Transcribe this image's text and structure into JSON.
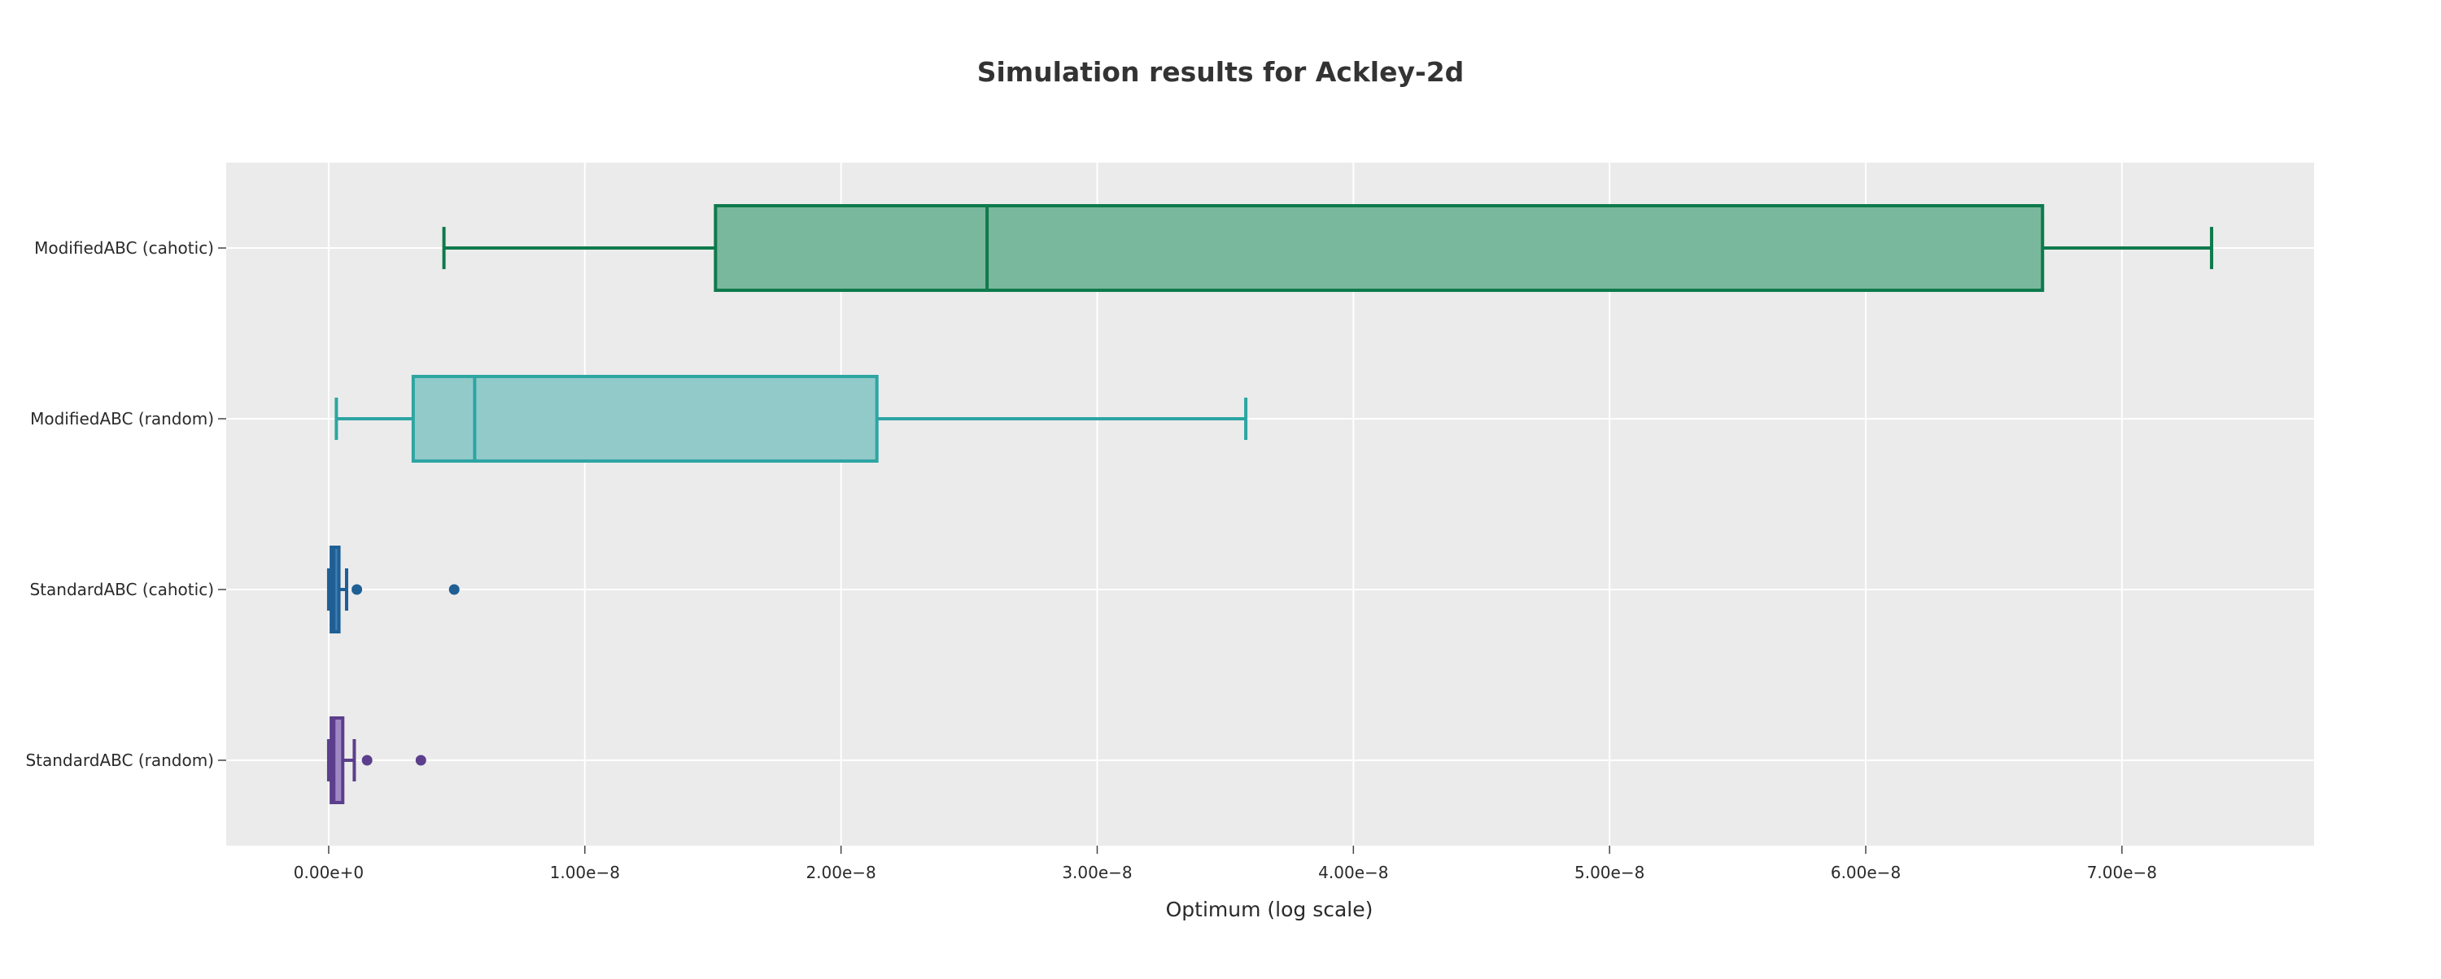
{
  "chart_data": {
    "type": "box",
    "orientation": "horizontal",
    "title": "Simulation results for Ackley-2d",
    "xlabel": "Optimum (log scale)",
    "ylabel": "",
    "xlim": [
      -4e-09,
      7.75e-08
    ],
    "xticks": [
      0,
      1e-08,
      2e-08,
      3e-08,
      4e-08,
      5e-08,
      6e-08,
      7e-08
    ],
    "xtick_labels": [
      "0.00e+0",
      "1.00e−8",
      "2.00e−8",
      "3.00e−8",
      "4.00e−8",
      "5.00e−8",
      "6.00e−8",
      "7.00e−8"
    ],
    "grid": true,
    "background_color": "#ebebeb",
    "series": [
      {
        "name": "ModifiedABC (cahotic)",
        "color": "#0e7a4c",
        "fill": "#7ab89e",
        "min": 4.5e-09,
        "q1": 1.51e-08,
        "median": 2.57e-08,
        "q3": 6.69e-08,
        "max": 7.35e-08,
        "outliers": []
      },
      {
        "name": "ModifiedABC (random)",
        "color": "#2da5a3",
        "fill": "#92caca",
        "min": 3e-10,
        "q1": 3.3e-09,
        "median": 5.7e-09,
        "q3": 2.14e-08,
        "max": 3.58e-08,
        "outliers": []
      },
      {
        "name": "StandardABC (cahotic)",
        "color": "#1f5f94",
        "fill": "#3e7fb6",
        "min": 0,
        "q1": 1e-10,
        "median": 2e-10,
        "q3": 4e-10,
        "max": 7e-10,
        "outliers": [
          1.1e-09,
          4.9e-09
        ]
      },
      {
        "name": "StandardABC (random)",
        "color": "#5c3f8c",
        "fill": "#9f88c4",
        "min": 0,
        "q1": 1e-10,
        "median": 2e-10,
        "q3": 5.5e-10,
        "max": 1e-09,
        "outliers": [
          1.5e-09,
          3.6e-09
        ]
      }
    ]
  }
}
